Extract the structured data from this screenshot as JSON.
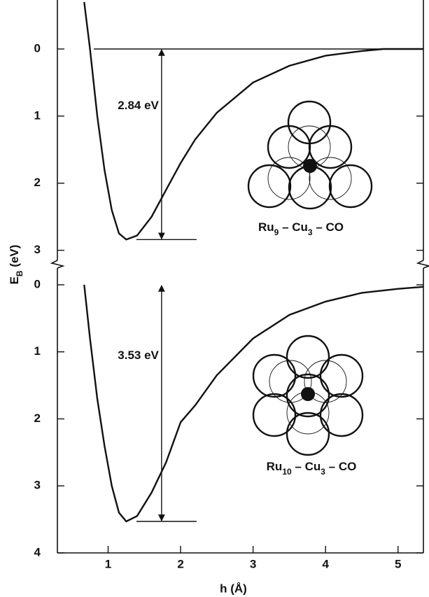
{
  "chart_data": [
    {
      "type": "line",
      "ylabel_parts": [
        "E",
        "B",
        " (eV)"
      ],
      "x": [
        0.67,
        0.75,
        0.85,
        0.95,
        1.05,
        1.15,
        1.25,
        1.4,
        1.6,
        1.8,
        2.0,
        2.2,
        2.5,
        3.0,
        3.5,
        4.0,
        4.5,
        4.8,
        5.35
      ],
      "values": [
        -0.7,
        0,
        1,
        1.8,
        2.4,
        2.75,
        2.84,
        2.78,
        2.5,
        2.1,
        1.7,
        1.35,
        0.95,
        0.5,
        0.25,
        0.1,
        0.03,
        0,
        0
      ],
      "color": "#111111",
      "xlim": [
        0.3,
        5.35
      ],
      "ylim": [
        -0.73,
        3.15
      ],
      "yticks": [
        0,
        1,
        2,
        3
      ],
      "y_inverted": true,
      "well_depth": 2.84,
      "well_depth_label": "2.84 eV",
      "formula_parts": [
        "Ru",
        "9",
        " – Cu",
        "3",
        " – CO"
      ]
    },
    {
      "type": "line",
      "xlabel": "h (Å)",
      "x": [
        0.67,
        0.75,
        0.85,
        0.95,
        1.05,
        1.15,
        1.25,
        1.4,
        1.6,
        1.8,
        2.0,
        2.2,
        2.5,
        3.0,
        3.5,
        4.0,
        4.5,
        5.0,
        5.35
      ],
      "values": [
        0,
        0.8,
        1.7,
        2.4,
        3.0,
        3.4,
        3.53,
        3.45,
        3.1,
        2.65,
        2.05,
        1.8,
        1.35,
        0.8,
        0.45,
        0.25,
        0.12,
        0.06,
        0.03
      ],
      "color": "#111111",
      "xlim": [
        0.3,
        5.35
      ],
      "ylim": [
        -0.25,
        4
      ],
      "xticks": [
        1,
        2,
        3,
        4,
        5
      ],
      "yticks": [
        0,
        1,
        2,
        3,
        4
      ],
      "y_inverted": true,
      "well_depth": 3.53,
      "well_depth_label": "3.53 eV",
      "formula_parts": [
        "Ru",
        "10",
        " – Cu",
        "3",
        " – CO"
      ]
    }
  ]
}
